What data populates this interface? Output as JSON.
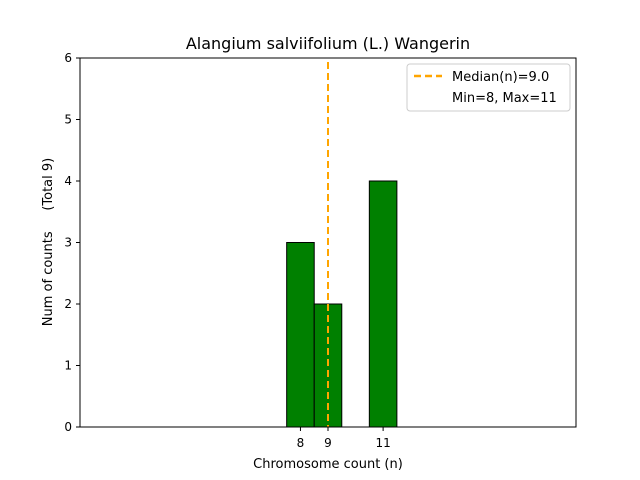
{
  "chart_data": {
    "type": "bar",
    "title": "Alangium salviifolium (L.) Wangerin",
    "xlabel": "Chromosome count (n)",
    "ylabel": "Num of counts     (Total 9)",
    "categories": [
      8,
      9,
      11
    ],
    "values": [
      3,
      2,
      4
    ],
    "xlim": [
      0,
      18
    ],
    "ylim": [
      0,
      6
    ],
    "xticks": [
      8,
      9,
      11
    ],
    "yticks": [
      0,
      1,
      2,
      3,
      4,
      5,
      6
    ],
    "bar_color": "#008000",
    "bar_edge_color": "#000000",
    "median": 9.0,
    "median_color": "#FFA500",
    "legend": {
      "position": "top-right",
      "entries": [
        "Median(n)=9.0",
        "Min=8, Max=11"
      ]
    }
  }
}
